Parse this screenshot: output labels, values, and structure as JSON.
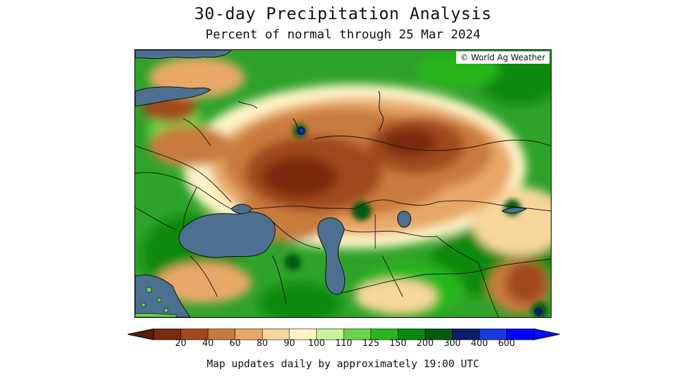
{
  "header": {
    "title": "30-day Precipitation Analysis",
    "subtitle": "Percent of normal through 25 Mar 2024"
  },
  "map": {
    "credit": "© World Ag Weather"
  },
  "legend": {
    "ticks": [
      "20",
      "40",
      "60",
      "80",
      "90",
      "100",
      "110",
      "125",
      "150",
      "200",
      "300",
      "400",
      "600"
    ],
    "colors": [
      "#7a2a10",
      "#a0481e",
      "#c97a3e",
      "#e8a768",
      "#f7d79b",
      "#fff4c8",
      "#c9f29a",
      "#69d34a",
      "#27b61b",
      "#0a8a10",
      "#055a10",
      "#0b1e6e",
      "#1a3ae0",
      "#0000ff"
    ],
    "left_arrow_color": "#5c1a08",
    "right_arrow_color": "#0010ff"
  },
  "footer": {
    "note": "Map updates daily by approximately 19:00 UTC"
  },
  "colors": {
    "water": "#4d7090",
    "border_lines": "#111111"
  }
}
